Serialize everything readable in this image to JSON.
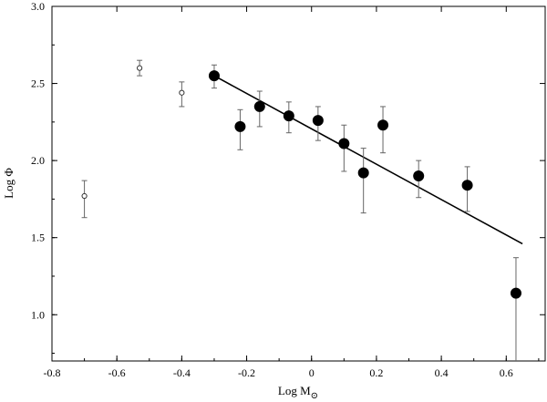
{
  "chart_data": {
    "type": "scatter",
    "xlabel": "Log M",
    "xlabel_sub": "⊙",
    "ylabel": "Log Φ",
    "xlim": [
      -0.8,
      0.72
    ],
    "ylim": [
      0.7,
      3.0
    ],
    "x_ticks": [
      -0.8,
      -0.6,
      -0.4,
      -0.2,
      0.0,
      0.2,
      0.4,
      0.6
    ],
    "x_tick_labels": [
      "-0.8",
      "-0.6",
      "-0.4",
      "-0.2",
      "0",
      "0.2",
      "0.4",
      "0.6"
    ],
    "y_ticks": [
      1.0,
      1.5,
      2.0,
      2.5,
      3.0
    ],
    "y_tick_labels": [
      "1.0",
      "1.5",
      "2.0",
      "2.5",
      "3.0"
    ],
    "grid": false,
    "series": [
      {
        "marker": "open-circle",
        "points": [
          {
            "x": -0.7,
            "y": 1.77,
            "lo": 1.63,
            "hi": 1.87
          },
          {
            "x": -0.53,
            "y": 2.6,
            "lo": 2.55,
            "hi": 2.65
          },
          {
            "x": -0.4,
            "y": 2.44,
            "lo": 2.35,
            "hi": 2.51
          }
        ]
      },
      {
        "marker": "filled-circle",
        "points": [
          {
            "x": -0.3,
            "y": 2.55,
            "lo": 2.47,
            "hi": 2.62
          },
          {
            "x": -0.22,
            "y": 2.22,
            "lo": 2.07,
            "hi": 2.33
          },
          {
            "x": -0.16,
            "y": 2.35,
            "lo": 2.22,
            "hi": 2.45
          },
          {
            "x": -0.07,
            "y": 2.29,
            "lo": 2.18,
            "hi": 2.38
          },
          {
            "x": 0.02,
            "y": 2.26,
            "lo": 2.13,
            "hi": 2.35
          },
          {
            "x": 0.1,
            "y": 2.11,
            "lo": 1.93,
            "hi": 2.23
          },
          {
            "x": 0.16,
            "y": 1.92,
            "lo": 1.66,
            "hi": 2.08
          },
          {
            "x": 0.22,
            "y": 2.23,
            "lo": 2.05,
            "hi": 2.35
          },
          {
            "x": 0.33,
            "y": 1.9,
            "lo": 1.76,
            "hi": 2.0
          },
          {
            "x": 0.48,
            "y": 1.84,
            "lo": 1.67,
            "hi": 1.96
          },
          {
            "x": 0.63,
            "y": 1.14,
            "lo": 0.7,
            "hi": 1.37
          }
        ]
      }
    ],
    "fit_line": {
      "x": [
        -0.3,
        0.65
      ],
      "y": [
        2.55,
        1.46
      ]
    }
  }
}
